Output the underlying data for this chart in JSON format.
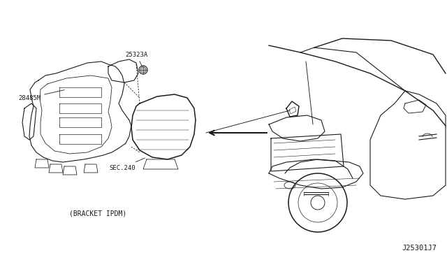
{
  "bg_color": "#ffffff",
  "fig_width": 6.4,
  "fig_height": 3.72,
  "dpi": 100,
  "diagram_code": "J25301J7",
  "label_25323A": "25323A",
  "label_28485M": "28485M",
  "label_SEC240": "SEC.240",
  "label_bracket": "(BRACKET IPDM)",
  "text_color": "#1a1a1a",
  "line_color": "#1a1a1a",
  "font_size_labels": 6.5,
  "font_size_bracket": 7.0,
  "font_size_code": 7.5
}
